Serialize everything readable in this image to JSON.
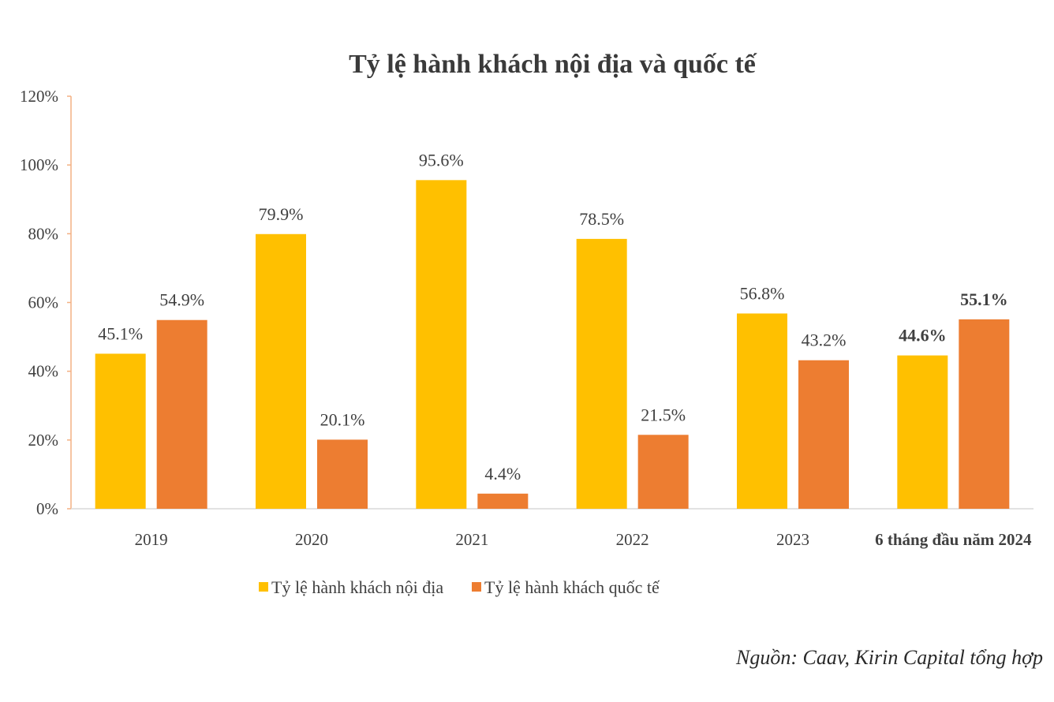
{
  "chart_data": {
    "type": "bar",
    "title": "Tỷ lệ hành khách nội địa và quốc tế",
    "categories": [
      "2019",
      "2020",
      "2021",
      "2022",
      "2023",
      "6 tháng đầu năm 2024"
    ],
    "series": [
      {
        "name": "Tỷ lệ hành khách nội địa",
        "color": "#FFC000",
        "values": [
          45.1,
          79.9,
          95.6,
          78.5,
          56.8,
          44.6
        ],
        "labels": [
          "45.1%",
          "79.9%",
          "95.6%",
          "78.5%",
          "56.8%",
          "44.6%"
        ]
      },
      {
        "name": "Tỷ lệ hành khách quốc tế",
        "color": "#ED7D31",
        "values": [
          54.9,
          20.1,
          4.4,
          21.5,
          43.2,
          55.1
        ],
        "labels": [
          "54.9%",
          "20.1%",
          "4.4%",
          "21.5%",
          "43.2%",
          "55.1%"
        ]
      }
    ],
    "yticks": [
      "0%",
      "20%",
      "40%",
      "60%",
      "80%",
      "100%",
      "120%"
    ],
    "ylim": [
      0,
      120
    ],
    "grid": false,
    "legend": "bottom",
    "source": "Nguồn: Caav, Kirin Capital tổng hợp"
  }
}
